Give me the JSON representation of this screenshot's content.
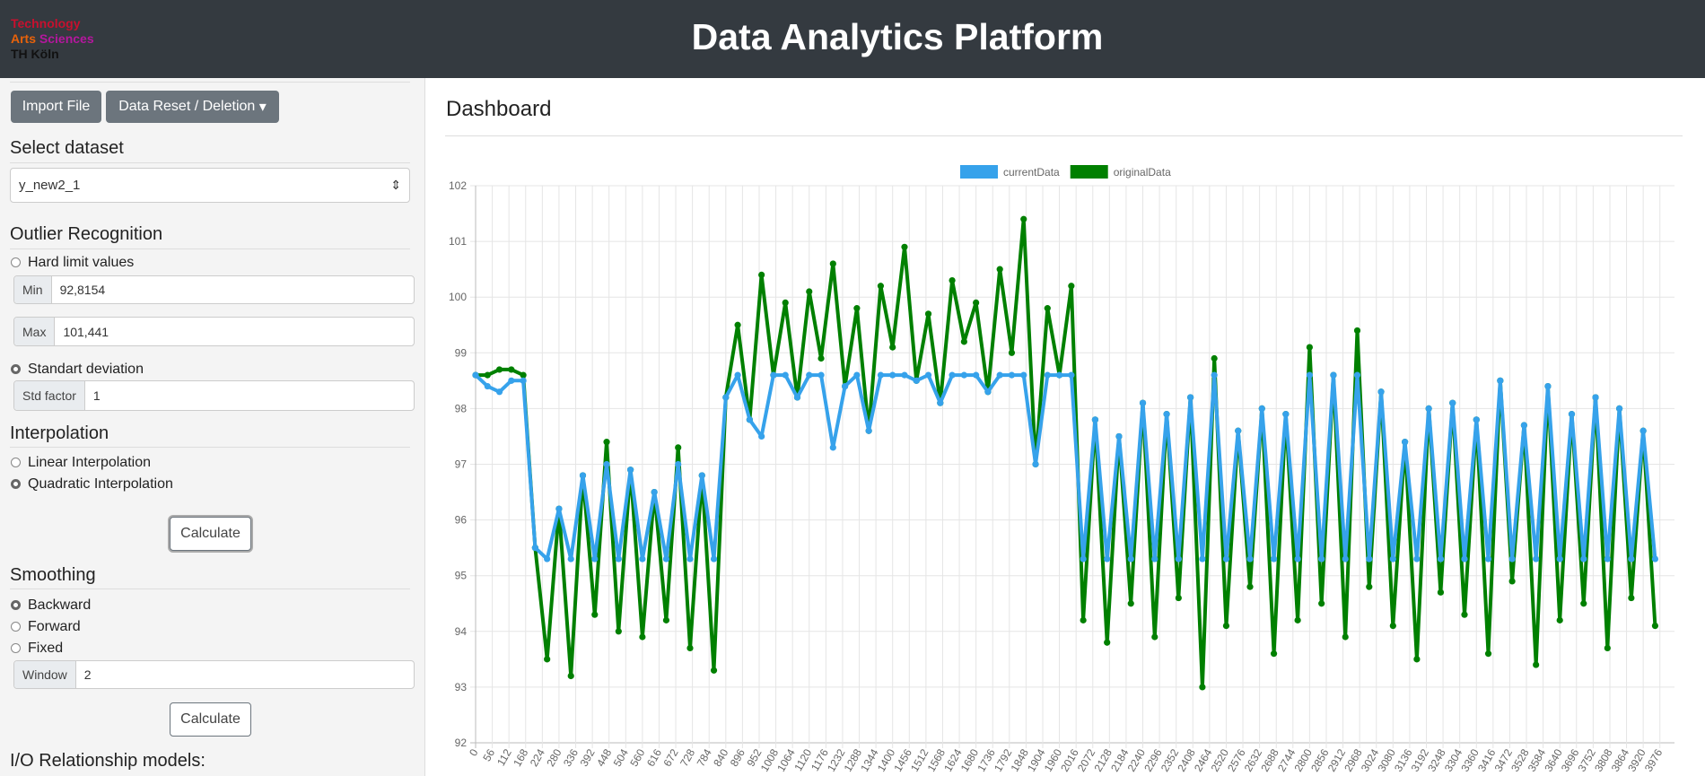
{
  "header": {
    "logo": [
      "Technology",
      "Arts",
      "Sciences",
      "TH Köln"
    ],
    "title": "Data Analytics Platform"
  },
  "sidebar": {
    "buttons": [
      "Import File",
      "Data Reset / Deletion"
    ],
    "dataset": {
      "title": "Select dataset",
      "selected": "y_new2_1"
    },
    "outlier": {
      "title": "Outlier Recognition",
      "hard_limit": "Hard limit values",
      "min_label": "Min",
      "min_value": "92,8154",
      "max_label": "Max",
      "max_value": "101,441",
      "std": "Standart deviation",
      "std_label": "Std factor",
      "std_value": "1"
    },
    "interpolation": {
      "title": "Interpolation",
      "linear": "Linear Interpolation",
      "quadratic": "Quadratic Interpolation",
      "button": "Calculate"
    },
    "smoothing": {
      "title": "Smoothing",
      "backward": "Backward",
      "forward": "Forward",
      "fixed": "Fixed",
      "window_label": "Window",
      "window_value": "2",
      "button": "Calculate"
    },
    "io": "I/O Relationship models:"
  },
  "dashboard": {
    "title": "Dashboard"
  },
  "chart_data": {
    "type": "line",
    "x": [
      0,
      40,
      80,
      120,
      160,
      200,
      240,
      280,
      320,
      360,
      400,
      440,
      480,
      520,
      560,
      600,
      640,
      680,
      720,
      760,
      800,
      840,
      880,
      920,
      960,
      1000,
      1040,
      1080,
      1120,
      1160,
      1200,
      1240,
      1280,
      1320,
      1360,
      1400,
      1440,
      1480,
      1520,
      1560,
      1600,
      1640,
      1680,
      1720,
      1760,
      1800,
      1840,
      1880,
      1920,
      1960,
      2000,
      2040,
      2080,
      2120,
      2160,
      2200,
      2240,
      2280,
      2320,
      2360,
      2400,
      2440,
      2480,
      2520,
      2560,
      2600,
      2640,
      2680,
      2720,
      2760,
      2800,
      2840,
      2880,
      2920,
      2960,
      3000,
      3040,
      3080,
      3120,
      3160,
      3200,
      3240,
      3280,
      3320,
      3360,
      3400,
      3440,
      3480,
      3520,
      3560,
      3600,
      3640,
      3680,
      3720,
      3760,
      3800,
      3840,
      3880,
      3920,
      3960
    ],
    "series": [
      {
        "name": "currentData",
        "color": "#36a2eb",
        "values": [
          98.6,
          98.4,
          98.3,
          98.5,
          98.5,
          95.5,
          95.3,
          96.2,
          95.3,
          96.8,
          95.3,
          97.0,
          95.3,
          96.9,
          95.3,
          96.5,
          95.3,
          97.0,
          95.3,
          96.8,
          95.3,
          98.2,
          98.6,
          97.8,
          97.5,
          98.6,
          98.6,
          98.2,
          98.6,
          98.6,
          97.3,
          98.4,
          98.6,
          97.6,
          98.6,
          98.6,
          98.6,
          98.5,
          98.6,
          98.1,
          98.6,
          98.6,
          98.6,
          98.3,
          98.6,
          98.6,
          98.6,
          97.0,
          98.6,
          98.6,
          98.6,
          95.3,
          97.8,
          95.3,
          97.5,
          95.3,
          98.1,
          95.3,
          97.9,
          95.3,
          98.2,
          95.3,
          98.6,
          95.3,
          97.6,
          95.3,
          98.0,
          95.3,
          97.9,
          95.3,
          98.6,
          95.3,
          98.6,
          95.3,
          98.6,
          95.3,
          98.3,
          95.3,
          97.4,
          95.3,
          98.0,
          95.3,
          98.1,
          95.3,
          97.8,
          95.3,
          98.5,
          95.3,
          97.7,
          95.3,
          98.4,
          95.3,
          97.9,
          95.3,
          98.2,
          95.3,
          98.0,
          95.3,
          97.6,
          95.3
        ]
      },
      {
        "name": "originalData",
        "color": "#008000",
        "values": [
          98.6,
          98.6,
          98.7,
          98.7,
          98.6,
          95.5,
          93.5,
          96.2,
          93.2,
          96.8,
          94.3,
          97.4,
          94.0,
          96.9,
          93.9,
          96.5,
          94.2,
          97.3,
          93.7,
          96.8,
          93.3,
          98.2,
          99.5,
          97.8,
          100.4,
          98.6,
          99.9,
          98.2,
          100.1,
          98.9,
          100.6,
          98.4,
          99.8,
          97.6,
          100.2,
          99.1,
          100.9,
          98.5,
          99.7,
          98.1,
          100.3,
          99.2,
          99.9,
          98.3,
          100.5,
          99.0,
          101.4,
          97.0,
          99.8,
          98.6,
          100.2,
          94.2,
          97.8,
          93.8,
          97.5,
          94.5,
          98.1,
          93.9,
          97.9,
          94.6,
          98.2,
          93.0,
          98.9,
          94.1,
          97.6,
          94.8,
          98.0,
          93.6,
          97.9,
          94.2,
          99.1,
          94.5,
          98.6,
          93.9,
          99.4,
          94.8,
          98.3,
          94.1,
          97.4,
          93.5,
          98.0,
          94.7,
          98.1,
          94.3,
          97.8,
          93.6,
          98.5,
          94.9,
          97.7,
          93.4,
          98.4,
          94.2,
          97.9,
          94.5,
          98.2,
          93.7,
          98.0,
          94.6,
          97.6,
          94.1
        ]
      }
    ],
    "xlim": [
      0,
      4025
    ],
    "xticks": [
      0,
      56,
      112,
      168,
      224,
      280,
      336,
      392,
      448,
      504,
      560,
      616,
      672,
      728,
      784,
      840,
      896,
      952,
      1008,
      1064,
      1120,
      1176,
      1232,
      1288,
      1344,
      1400,
      1456,
      1512,
      1568,
      1624,
      1680,
      1736,
      1792,
      1848,
      1904,
      1960,
      2016,
      2072,
      2128,
      2184,
      2240,
      2296,
      2352,
      2408,
      2464,
      2520,
      2576,
      2632,
      2688,
      2744,
      2800,
      2856,
      2912,
      2968,
      3024,
      3080,
      3136,
      3192,
      3248,
      3304,
      3360,
      3416,
      3472,
      3528,
      3584,
      3640,
      3696,
      3752,
      3808,
      3864,
      3920,
      3976
    ],
    "ylim": [
      92,
      102
    ],
    "yticks": [
      92,
      93,
      94,
      95,
      96,
      97,
      98,
      99,
      100,
      101,
      102
    ],
    "grid": true,
    "legend": "top"
  }
}
